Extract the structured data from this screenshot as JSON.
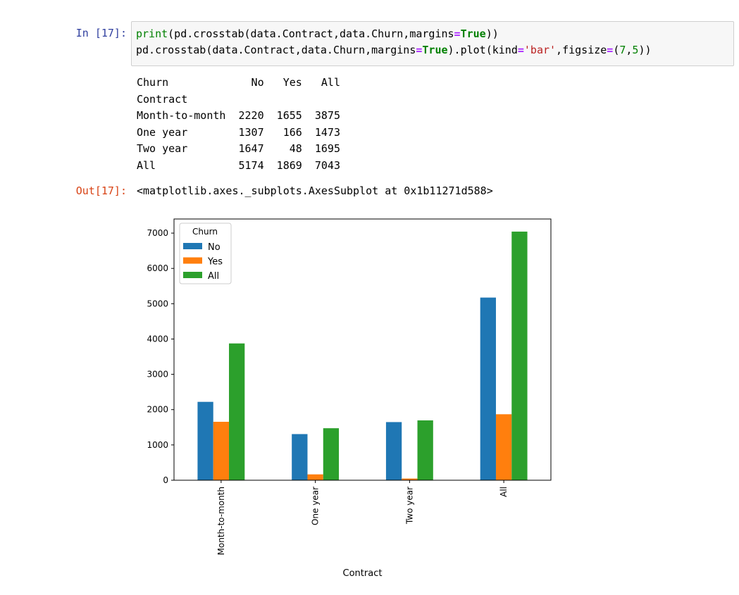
{
  "cell": {
    "in_prompt": "In [17]:",
    "out_prompt": "Out[17]:",
    "code": {
      "line1": [
        {
          "t": "print",
          "c": "kw-builtin"
        },
        {
          "t": "(pd.crosstab(data.Contract,data.Churn,margins",
          "c": ""
        },
        {
          "t": "=",
          "c": "op"
        },
        {
          "t": "True",
          "c": "kw-true"
        },
        {
          "t": "))",
          "c": ""
        }
      ],
      "line2": [
        {
          "t": "pd.crosstab(data.Contract,data.Churn,margins",
          "c": ""
        },
        {
          "t": "=",
          "c": "op"
        },
        {
          "t": "True",
          "c": "kw-true"
        },
        {
          "t": ").plot(kind",
          "c": ""
        },
        {
          "t": "=",
          "c": "op"
        },
        {
          "t": "'bar'",
          "c": "str"
        },
        {
          "t": ",figsize",
          "c": ""
        },
        {
          "t": "=",
          "c": "op"
        },
        {
          "t": "(",
          "c": ""
        },
        {
          "t": "7",
          "c": "num"
        },
        {
          "t": ",",
          "c": ""
        },
        {
          "t": "5",
          "c": "num"
        },
        {
          "t": "))",
          "c": ""
        }
      ]
    },
    "stdout_lines": [
      "Churn             No   Yes   All",
      "Contract                        ",
      "Month-to-month  2220  1655  3875",
      "One year        1307   166  1473",
      "Two year        1647    48  1695",
      "All             5174  1869  7043"
    ],
    "output_text": "<matplotlib.axes._subplots.AxesSubplot at 0x1b11271d588>"
  },
  "colors": {
    "No": "#1f77b4",
    "Yes": "#ff7f0e",
    "All": "#2ca02c"
  },
  "chart_data": {
    "type": "bar",
    "categories": [
      "Month-to-month",
      "One year",
      "Two year",
      "All"
    ],
    "series": [
      {
        "name": "No",
        "values": [
          2220,
          1307,
          1647,
          5174
        ]
      },
      {
        "name": "Yes",
        "values": [
          1655,
          166,
          48,
          1869
        ]
      },
      {
        "name": "All",
        "values": [
          3875,
          1473,
          1695,
          7043
        ]
      }
    ],
    "title": "",
    "xlabel": "Contract",
    "ylabel": "",
    "ylim": [
      0,
      7400
    ],
    "yticks": [
      0,
      1000,
      2000,
      3000,
      4000,
      5000,
      6000,
      7000
    ],
    "legend_title": "Churn",
    "legend_position": "top-left",
    "grid": false
  }
}
